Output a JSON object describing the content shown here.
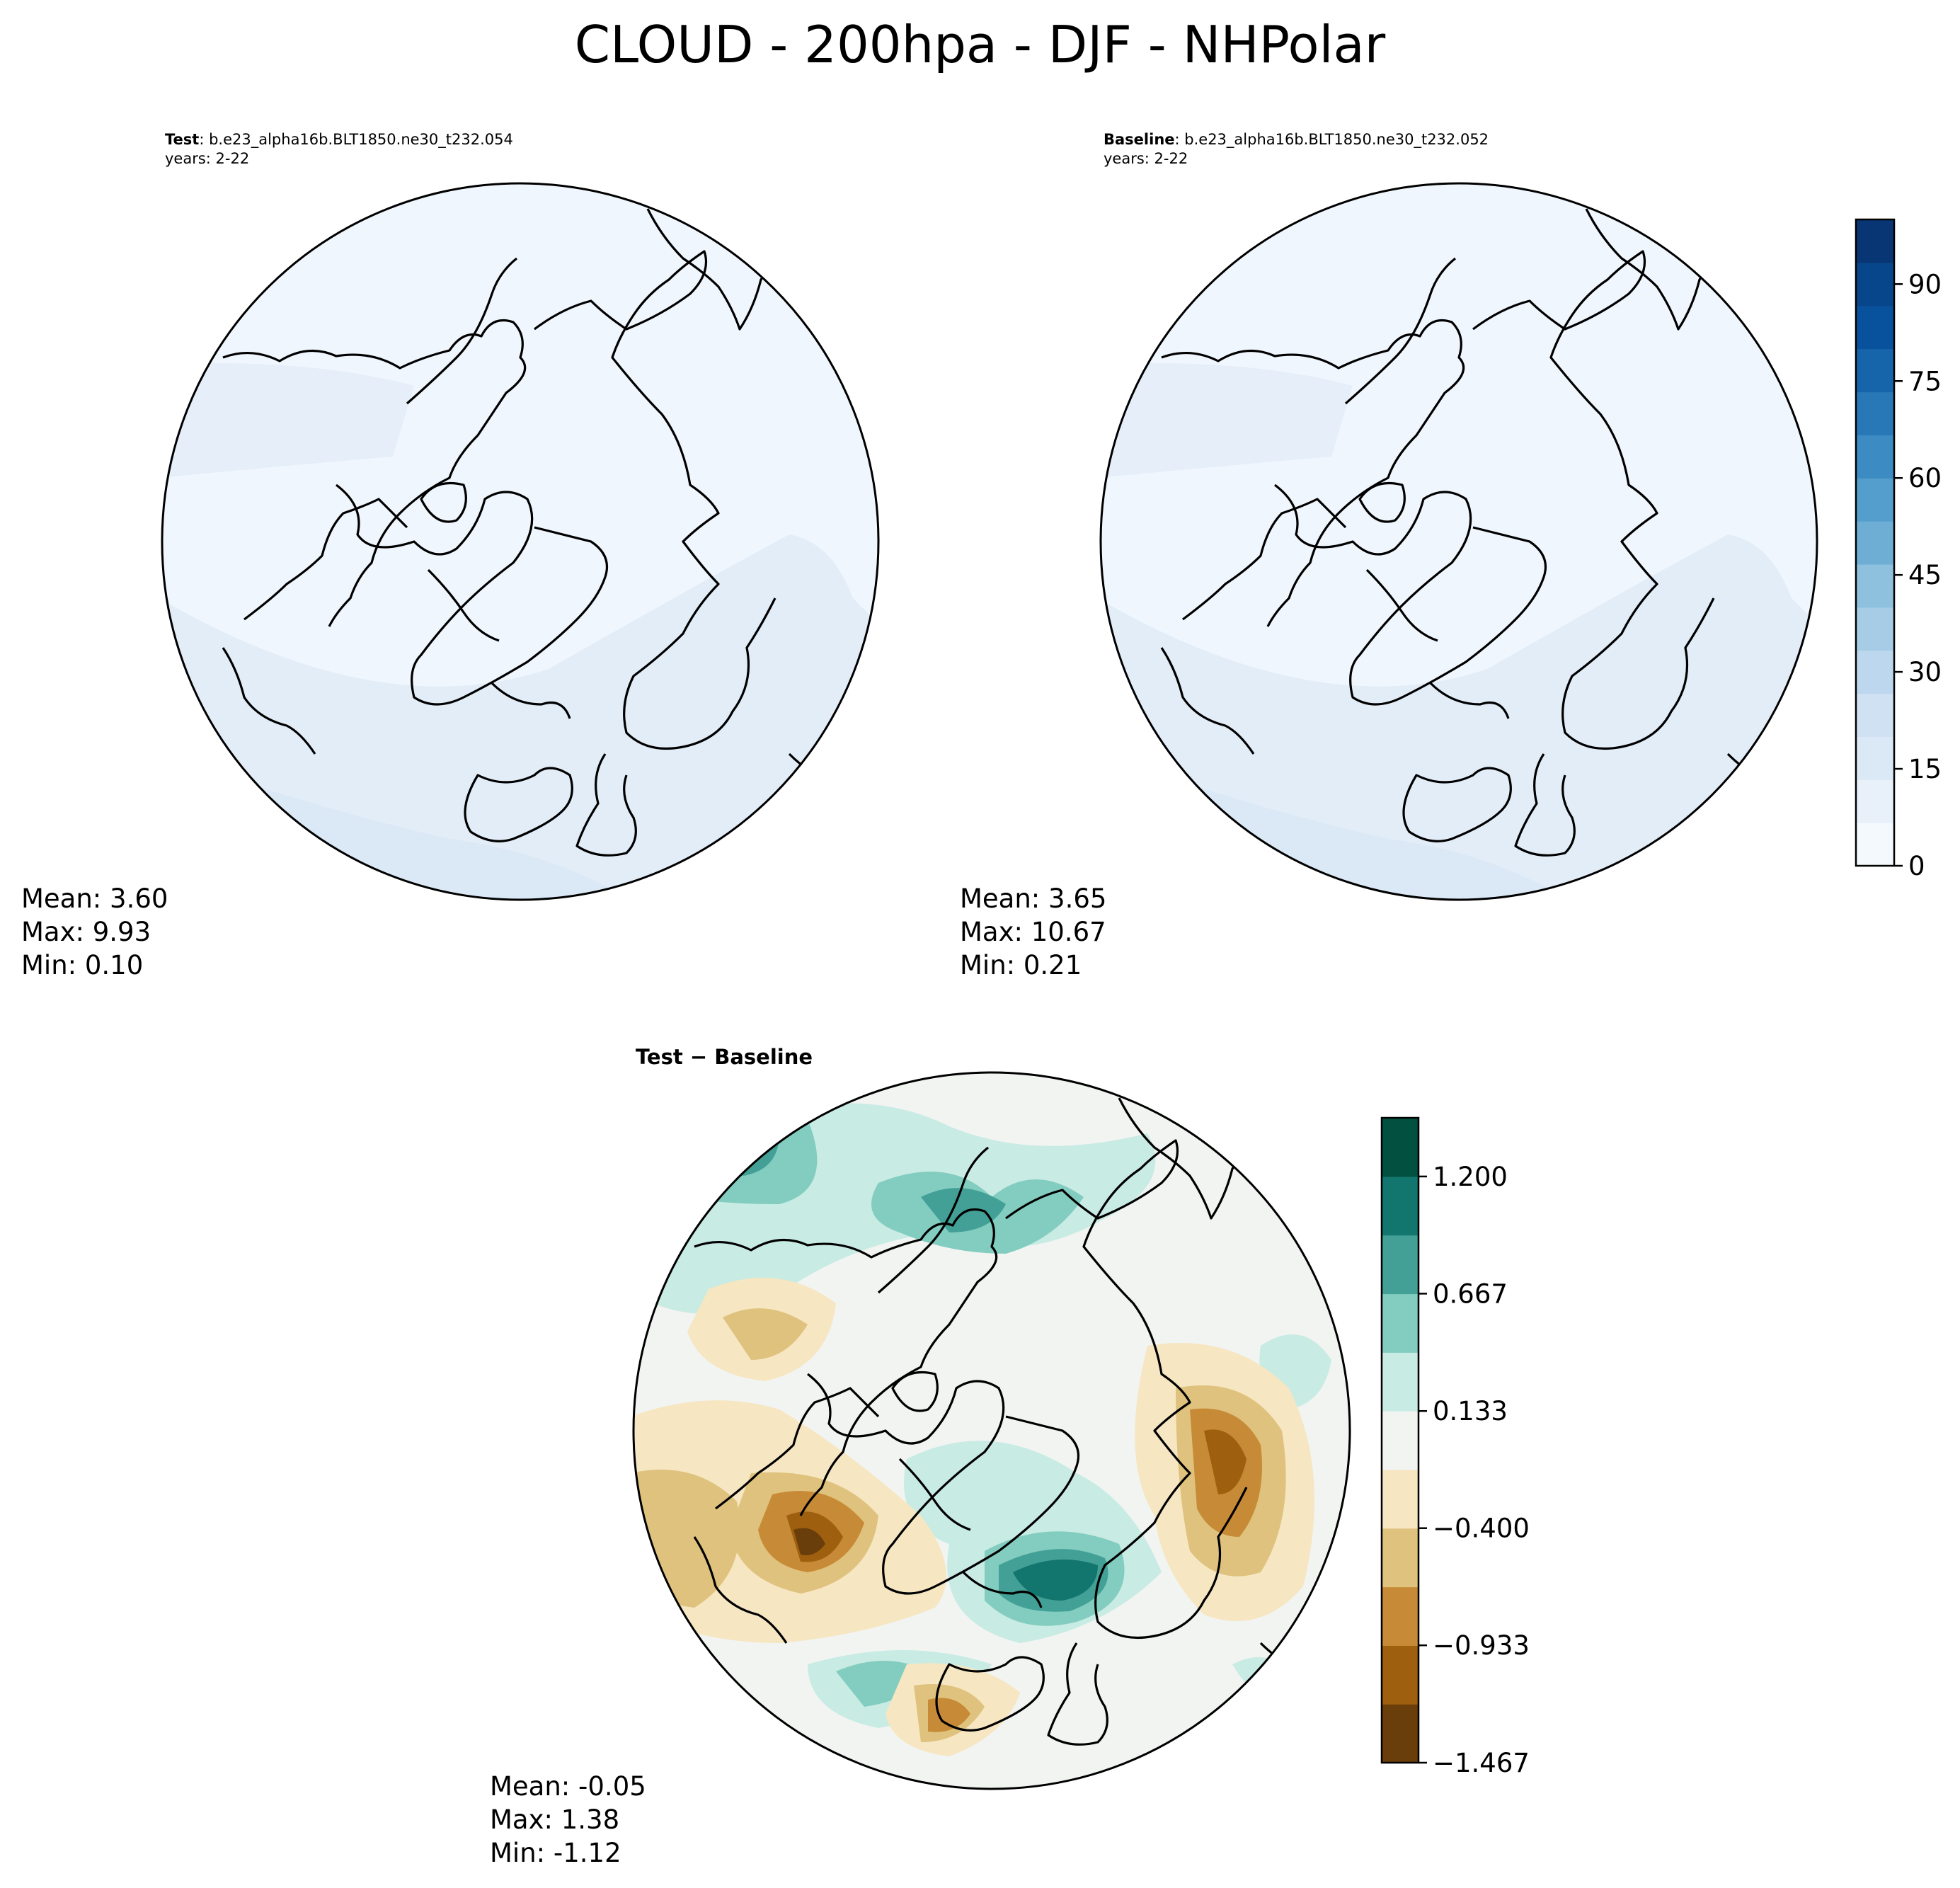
{
  "figure": {
    "title": "CLOUD - 200hpa - DJF - NHPolar"
  },
  "panels": {
    "test": {
      "label": "Test",
      "case": ": b.e23_alpha16b.BLT1850.ne30_t232.054",
      "years": "years: 2-22",
      "mean": "Mean:  3.60",
      "max": "Max:  9.93",
      "min": "Min:  0.10"
    },
    "baseline": {
      "label": "Baseline",
      "case": ": b.e23_alpha16b.BLT1850.ne30_t232.052",
      "years": "years: 2-22",
      "mean": "Mean:  3.65",
      "max": "Max: 10.67",
      "min": "Min:  0.21"
    },
    "diff": {
      "title": "Test − Baseline",
      "mean": "Mean: -0.05",
      "max": "Max:  1.38",
      "min": "Min: -1.12"
    }
  },
  "colorbars": {
    "abs": {
      "colormap": "Blues",
      "range": [
        0,
        100
      ],
      "ticks": [
        "0",
        "15",
        "30",
        "45",
        "60",
        "75",
        "90"
      ],
      "tick_values": [
        0,
        15,
        30,
        45,
        60,
        75,
        90
      ],
      "colors": [
        "#f4f9fe",
        "#e8f1fa",
        "#dbe9f6",
        "#cfe1f2",
        "#bdd7ee",
        "#a6cde5",
        "#8dc1dd",
        "#6eaed5",
        "#539ecd",
        "#3c8bc3",
        "#2878b8",
        "#1664aa",
        "#08519c",
        "#08468b",
        "#083674"
      ]
    },
    "diff": {
      "colormap": "BrBG",
      "range": [
        -1.467,
        1.467
      ],
      "ticks": [
        "−1.467",
        "−0.933",
        "−0.400",
        "0.133",
        "0.667",
        "1.200"
      ],
      "tick_values": [
        -1.467,
        -0.933,
        -0.4,
        0.133,
        0.667,
        1.2
      ],
      "colors": [
        "#6a3e0b",
        "#9e600f",
        "#c78b38",
        "#dfc27d",
        "#f6e6c2",
        "#f2f4f2",
        "#c8ebe4",
        "#82cdc0",
        "#43a096",
        "#13766e",
        "#02503f"
      ]
    }
  }
}
